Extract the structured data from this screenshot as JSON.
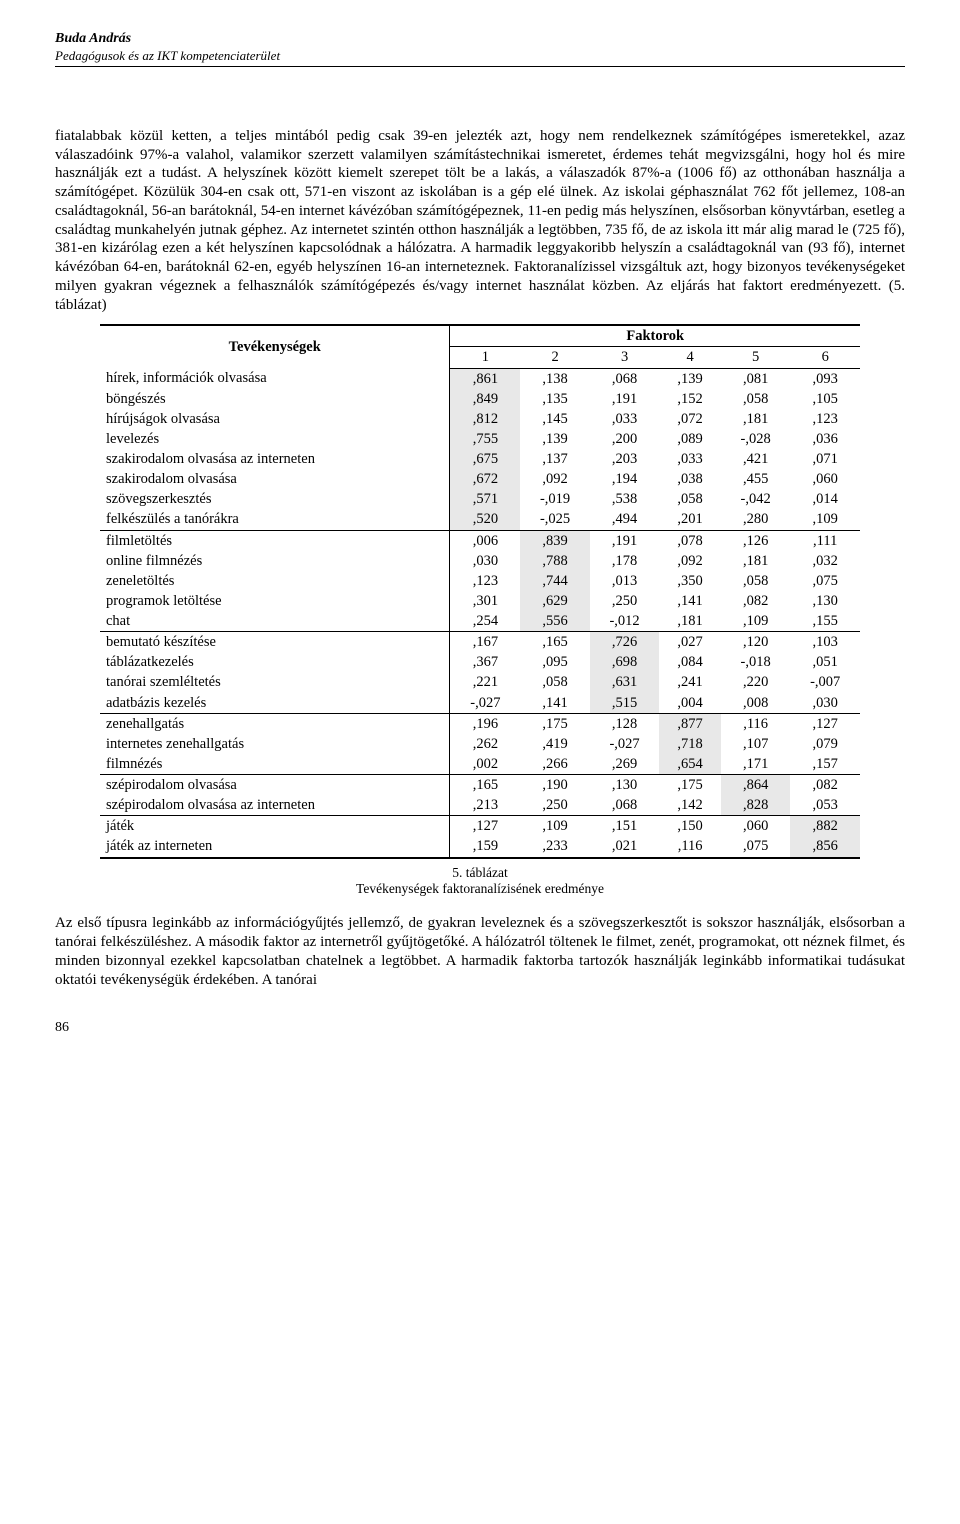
{
  "header": {
    "author": "Buda András",
    "subtitle": "Pedagógusok és az IKT kompetenciaterület"
  },
  "para1": "fiatalabbak közül ketten, a teljes mintából pedig csak 39-en jelezték azt, hogy nem rendelkeznek számítógépes ismeretekkel, azaz válaszadóink 97%-a valahol, valamikor szerzett valamilyen számítástechnikai ismeretet, érdemes tehát megvizsgálni, hogy hol és mire használják ezt a tudást. A helyszínek között kiemelt szerepet tölt be a lakás, a válaszadók 87%-a (1006 fő) az otthonában használja a számítógépet. Közülük 304-en csak ott, 571-en viszont az iskolában is a gép elé ülnek. Az iskolai géphasználat 762 főt jellemez, 108-an családtagoknál, 56-an barátoknál, 54-en internet kávézóban számítógépeznek, 11-en pedig más helyszínen, elsősorban könyvtárban, esetleg a családtag munkahelyén jutnak géphez. Az internetet szintén otthon használják a legtöbben, 735 fő, de az iskola itt már alig marad le (725 fő), 381-en kizárólag ezen a két helyszínen kapcsolódnak a hálózatra. A harmadik leggyakoribb helyszín a családtagoknál van (93 fő), internet kávézóban 64-en, barátoknál 62-en, egyéb helyszínen 16-an interneteznek. Faktoranalízissel vizsgáltuk azt, hogy bizonyos tevékenységeket milyen gyakran végeznek a felhasználók számítógépezés és/vagy internet használat közben. Az eljárás hat faktort eredményezett. (5. táblázat)",
  "table": {
    "col_activities": "Tevékenységek",
    "col_factors": "Faktorok",
    "col_nums": [
      "1",
      "2",
      "3",
      "4",
      "5",
      "6"
    ],
    "groups": [
      {
        "rows": [
          {
            "label": "hírek, információk olvasása",
            "v": [
              ",861",
              ",138",
              ",068",
              ",139",
              ",081",
              ",093"
            ],
            "hi": 0
          },
          {
            "label": "böngészés",
            "v": [
              ",849",
              ",135",
              ",191",
              ",152",
              ",058",
              ",105"
            ],
            "hi": 0
          },
          {
            "label": "hírújságok olvasása",
            "v": [
              ",812",
              ",145",
              ",033",
              ",072",
              ",181",
              ",123"
            ],
            "hi": 0
          },
          {
            "label": "levelezés",
            "v": [
              ",755",
              ",139",
              ",200",
              ",089",
              "-,028",
              ",036"
            ],
            "hi": 0
          },
          {
            "label": "szakirodalom olvasása az interneten",
            "v": [
              ",675",
              ",137",
              ",203",
              ",033",
              ",421",
              ",071"
            ],
            "hi": 0
          },
          {
            "label": "szakirodalom olvasása",
            "v": [
              ",672",
              ",092",
              ",194",
              ",038",
              ",455",
              ",060"
            ],
            "hi": 0
          },
          {
            "label": "szövegszerkesztés",
            "v": [
              ",571",
              "-,019",
              ",538",
              ",058",
              "-,042",
              ",014"
            ],
            "hi": 0
          },
          {
            "label": "felkészülés a tanórákra",
            "v": [
              ",520",
              "-,025",
              ",494",
              ",201",
              ",280",
              ",109"
            ],
            "hi": 0
          }
        ]
      },
      {
        "rows": [
          {
            "label": "filmletöltés",
            "v": [
              ",006",
              ",839",
              ",191",
              ",078",
              ",126",
              ",111"
            ],
            "hi": 1
          },
          {
            "label": "online filmnézés",
            "v": [
              ",030",
              ",788",
              ",178",
              ",092",
              ",181",
              ",032"
            ],
            "hi": 1
          },
          {
            "label": "zeneletöltés",
            "v": [
              ",123",
              ",744",
              ",013",
              ",350",
              ",058",
              ",075"
            ],
            "hi": 1
          },
          {
            "label": "programok letöltése",
            "v": [
              ",301",
              ",629",
              ",250",
              ",141",
              ",082",
              ",130"
            ],
            "hi": 1
          },
          {
            "label": "chat",
            "v": [
              ",254",
              ",556",
              "-,012",
              ",181",
              ",109",
              ",155"
            ],
            "hi": 1
          }
        ]
      },
      {
        "rows": [
          {
            "label": "bemutató készítése",
            "v": [
              ",167",
              ",165",
              ",726",
              ",027",
              ",120",
              ",103"
            ],
            "hi": 2
          },
          {
            "label": "táblázatkezelés",
            "v": [
              ",367",
              ",095",
              ",698",
              ",084",
              "-,018",
              ",051"
            ],
            "hi": 2
          },
          {
            "label": "tanórai szemléltetés",
            "v": [
              ",221",
              ",058",
              ",631",
              ",241",
              ",220",
              "-,007"
            ],
            "hi": 2
          },
          {
            "label": "adatbázis kezelés",
            "v": [
              "-,027",
              ",141",
              ",515",
              ",004",
              ",008",
              ",030"
            ],
            "hi": 2
          }
        ]
      },
      {
        "rows": [
          {
            "label": "zenehallgatás",
            "v": [
              ",196",
              ",175",
              ",128",
              ",877",
              ",116",
              ",127"
            ],
            "hi": 3
          },
          {
            "label": "internetes zenehallgatás",
            "v": [
              ",262",
              ",419",
              "-,027",
              ",718",
              ",107",
              ",079"
            ],
            "hi": 3
          },
          {
            "label": "filmnézés",
            "v": [
              ",002",
              ",266",
              ",269",
              ",654",
              ",171",
              ",157"
            ],
            "hi": 3
          }
        ]
      },
      {
        "rows": [
          {
            "label": "szépirodalom olvasása",
            "v": [
              ",165",
              ",190",
              ",130",
              ",175",
              ",864",
              ",082"
            ],
            "hi": 4
          },
          {
            "label": "szépirodalom olvasása az interneten",
            "v": [
              ",213",
              ",250",
              ",068",
              ",142",
              ",828",
              ",053"
            ],
            "hi": 4
          }
        ]
      },
      {
        "rows": [
          {
            "label": "játék",
            "v": [
              ",127",
              ",109",
              ",151",
              ",150",
              ",060",
              ",882"
            ],
            "hi": 5
          },
          {
            "label": "játék az interneten",
            "v": [
              ",159",
              ",233",
              ",021",
              ",116",
              ",075",
              ",856"
            ],
            "hi": 5
          }
        ]
      }
    ]
  },
  "caption_num": "5. táblázat",
  "caption_text": "Tevékenységek faktoranalízisének eredménye",
  "para2": "Az első típusra leginkább az információgyűjtés jellemző, de gyakran leveleznek és a szövegszerkesztőt is sokszor használják, elsősorban a tanórai felkészüléshez. A második faktor az internetről gyűjtögetőké. A hálózatról töltenek le filmet, zenét, programokat, ott néznek filmet, és minden bizonnyal ezekkel kapcsolatban chatelnek a legtöbbet. A harmadik faktorba tartozók használják leginkább informatikai tudásukat oktatói tevékenységük érdekében. A tanórai",
  "pagenum": "86"
}
